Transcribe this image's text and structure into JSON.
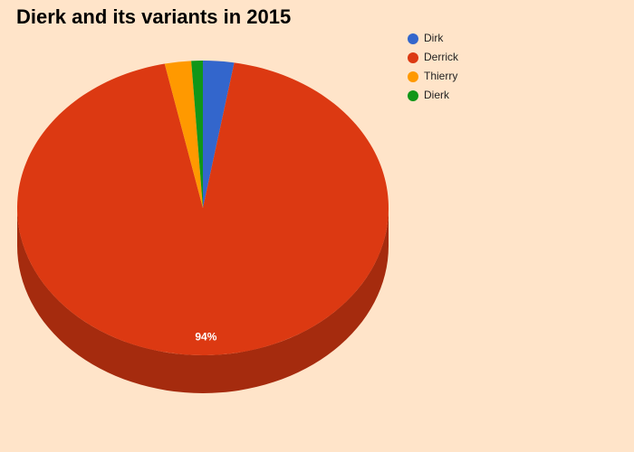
{
  "chart_data": {
    "type": "pie",
    "title": "Dierk and its variants in 2015",
    "categories": [
      "Dirk",
      "Derrick",
      "Thierry",
      "Dierk"
    ],
    "values": [
      2.7,
      94,
      2.3,
      1
    ],
    "value_labels": [
      null,
      "94%",
      null,
      null
    ],
    "colors": [
      "#3366cc",
      "#dc3912",
      "#ff9900",
      "#109618"
    ],
    "three_d": true,
    "legend": "right"
  }
}
